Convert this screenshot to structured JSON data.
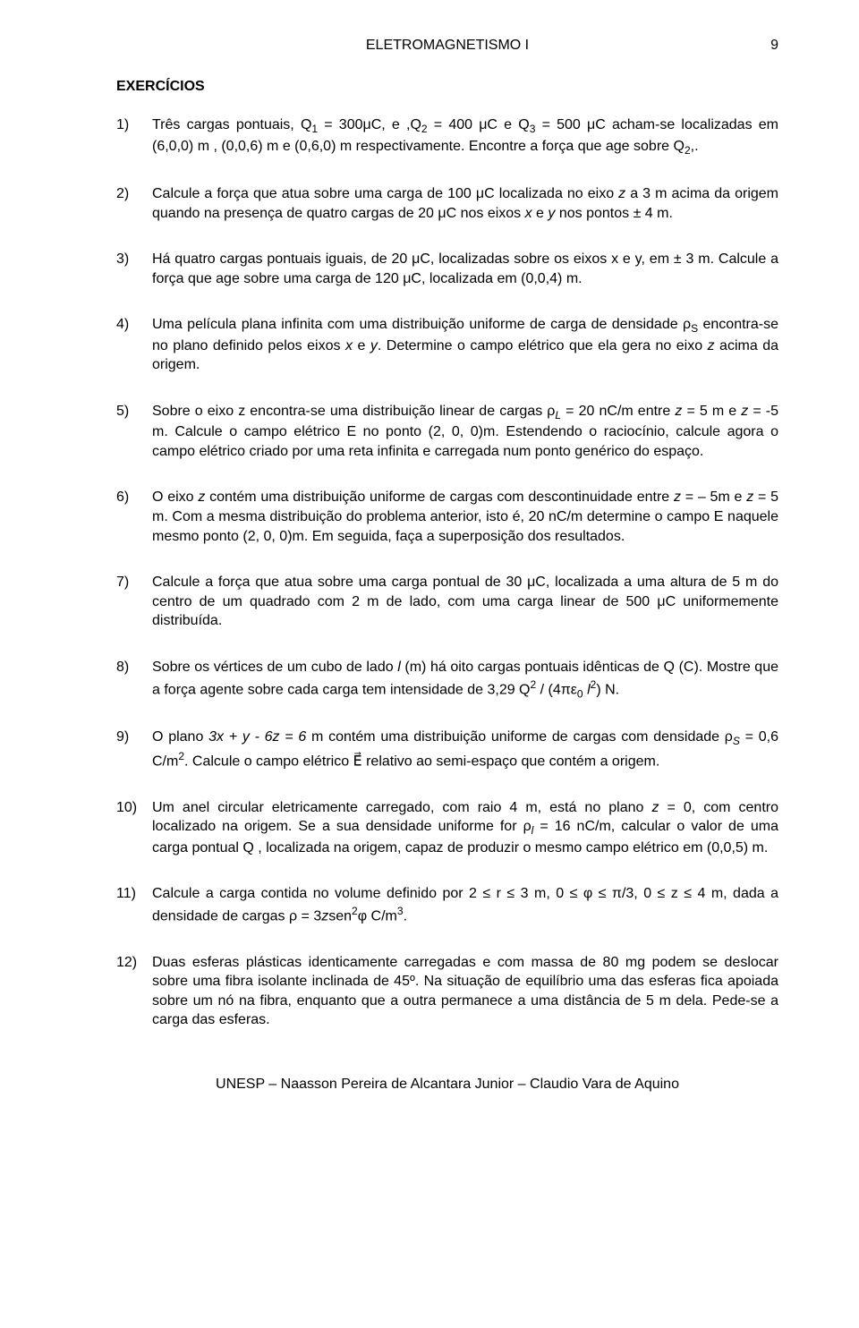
{
  "header": {
    "title": "ELETROMAGNETISMO I",
    "page_number": "9"
  },
  "section_title": "EXERCÍCIOS",
  "exercises": [
    {
      "num": "1)",
      "text": "Três cargas pontuais, Q<span class=\"sub\">1</span> = 300μC, e ,Q<span class=\"sub\">2</span> = 400 μC  e Q<span class=\"sub\">3</span> = 500 μC acham-se localizadas em (6,0,0) m , (0,0,6) m e (0,6,0) m respectivamente. Encontre a força que age sobre Q<span class=\"sub\">2</span>,."
    },
    {
      "num": "2)",
      "text": "Calcule a força que atua sobre uma carga de 100 μC localizada no eixo <span class=\"italic\">z</span> a 3 m acima da origem quando na presença de quatro cargas de 20 μC nos eixos <span class=\"italic\">x</span> e <span class=\"italic\">y</span> nos pontos ± 4 m."
    },
    {
      "num": "3)",
      "text": "Há quatro cargas pontuais iguais, de 20 μC, localizadas sobre os eixos x e y, em ± 3 m.  Calcule a força que age sobre uma carga de 120 μC, localizada em (0,0,4) m."
    },
    {
      "num": "4)",
      "text": "Uma película plana infinita com uma distribuição uniforme de carga de densidade ρ<span class=\"sub\">S</span> encontra-se no plano definido pelos eixos <span class=\"italic\">x</span> e <span class=\"italic\">y</span>. Determine o campo elétrico que ela gera no eixo <span class=\"italic\">z</span> acima da origem."
    },
    {
      "num": "5)",
      "text": "Sobre o eixo z encontra-se uma distribuição linear de cargas ρ<span class=\"sub italic\">L</span> = 20 nC/m entre <span class=\"italic\">z</span> = 5 m e <span class=\"italic\">z</span> = -5 m. Calcule o campo elétrico E no ponto (2, 0, 0)m. Estendendo o raciocínio, calcule agora o campo elétrico criado por uma reta infinita e carregada num ponto genérico do espaço."
    },
    {
      "num": "6)",
      "text": "O eixo <span class=\"italic\">z</span> contém uma distribuição uniforme de cargas com descontinuidade entre <span class=\"italic\">z</span> = – 5m e <span class=\"italic\">z</span> = 5 m. Com a mesma distribuição do problema anterior, isto é, 20 nC/m determine o campo E naquele mesmo ponto (2, 0, 0)m. Em seguida, faça a superposição dos resultados."
    },
    {
      "num": "7)",
      "text": "Calcule a força que atua sobre uma carga pontual de 30 μC, localizada a uma altura de 5 m do centro de um quadrado com 2 m de lado, com uma carga linear de 500 μC uniformemente distribuída."
    },
    {
      "num": "8)",
      "text": "Sobre os vértices de um cubo de lado <span class=\"italic\">l</span> (m) há oito cargas pontuais idênticas de Q (C). Mostre que a força agente sobre cada carga tem intensidade de 3,29 Q<span class=\"sup\">2</span> / (4πε<span class=\"sub\">0</span> <span class=\"italic\">l</span><span class=\"sup\">2</span>) N."
    },
    {
      "num": "9)",
      "text": "O plano <span class=\"italic\">3x + y - 6z = 6</span>  m contém uma distribuição uniforme de cargas com densidade ρ<span class=\"sub italic\">S</span> = 0,6 C/m<span class=\"sup\">2</span>. Calcule o campo elétrico E⃗ relativo ao semi-espaço que contém a origem."
    },
    {
      "num": "10)",
      "text": "Um anel circular eletricamente carregado, com raio 4 m, está no plano <span class=\"italic\">z</span> = 0, com centro localizado na origem.  Se a sua densidade uniforme for ρ<span class=\"sub italic\">l</span> =  16 nC/m, calcular o valor de uma carga pontual Q , localizada na origem, capaz de produzir o mesmo campo elétrico em (0,0,5) m."
    },
    {
      "num": "11)",
      "text": "Calcule a carga contida no volume definido por 2 ≤ r ≤ 3 m, 0 ≤ φ ≤ π/3, 0 ≤ z ≤ 4 m, dada a densidade de cargas ρ = 3<span class=\"italic\">z</span>sen<span class=\"sup\">2</span>φ C/m<span class=\"sup\">3</span>."
    },
    {
      "num": "12)",
      "text": "Duas esferas plásticas identicamente carregadas e com massa de 80 mg podem se deslocar sobre uma fibra isolante inclinada de 45º. Na situação de equilíbrio uma das esferas fica apoiada sobre um nó na fibra, enquanto que a outra permanece a uma distância de 5 m dela. Pede-se a carga das esferas."
    }
  ],
  "footer": "UNESP – Naasson Pereira de Alcantara Junior – Claudio Vara de Aquino"
}
